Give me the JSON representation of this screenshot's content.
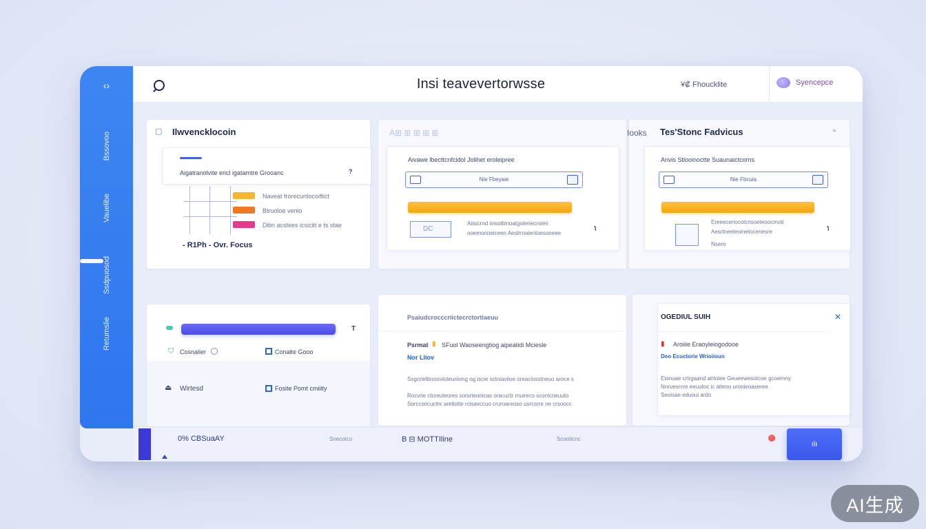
{
  "app": {
    "title": "Insi teavevertorwsse",
    "top_link": "¥₡ Fhoucklite",
    "user_label": "Syencepce"
  },
  "sidebar": {
    "items": [
      "Bssovoo",
      "Vauelibe",
      "Ssdpuosod",
      "Retumslie"
    ]
  },
  "cards": {
    "overview": {
      "title": "Ilwvencklocoin",
      "subtitle": "Aigatranolvite ericl igatamtre Grooanc",
      "subtitle_mark": "?",
      "legend": [
        {
          "label": "Naveat frorecurtiocoiftict",
          "color": "#f4b62c"
        },
        {
          "label": "Btruoloe veriio",
          "color": "#f07a23"
        },
        {
          "label": "Ditin acstees icsicitt e ts stae",
          "color": "#e03b8c"
        }
      ],
      "footer_text": "- R1Ph - Ovr.  Focus"
    },
    "middle_top": {
      "header_faint": "A⊞ ⊞ ⊞ ⊞ ⊞",
      "label": "Aivawe lbecttcnfcidol Jolihet eroleipree",
      "input_text": "Nie Fbeyaie",
      "lines": [
        "Aiisicrnd ivisotlimoatgsteriecrsteri",
        "ooemorioeiceen Aeslrroaienloesoneee"
      ],
      "box_text": "DC"
    },
    "right_top": {
      "prefix": "Iooks",
      "title": "Tes'Stonc Fadvicus",
      "label": "Anvis Stlooinoctte Suaunaictcorns",
      "input_text": "Nie Fbcuia",
      "lines": [
        "Ereeeceriocotcnsoeteoocmoti",
        "Aesrtneeteoinetocenesre",
        "Nsero"
      ]
    },
    "progress_card": {
      "mark": "T",
      "progress": 1.0,
      "opt1": "Cosnalier",
      "opt2": "Conaite Gooo",
      "opt3": "Wirtesd",
      "opt4": "Fosite Pomt cmiiity"
    },
    "mid_bottom": {
      "title": "Psaiudcrocccriictecrctortiaeuu",
      "row_label": "Psrmat",
      "row_text": "SFuol Waoseengtiog aipeatidi Mciesle",
      "tag": "Nor Lliov",
      "para": [
        "Ssgcrieltirsssvioteuriiong og iscie sctniaviioe oreaciosstneuo aroce s",
        "Rocvrie ctcreuteores sorsrteonicas oracuctr rnuirecs sconlcneuuto",
        "Sorccsricuctnr aretiotte rcisavccuo cruroareoso usrcsrre ne crsoocc"
      ]
    },
    "right_bottom": {
      "title": "OGEDIUL SUIH",
      "row_text": "Aroiiie Eraoyleiogodooe",
      "tag": "Deo Ecuctorie Wrioiioun",
      "para": [
        "Eionuae crtrgaand alrtoiee Geueewesotcoe gcoernny",
        "Nnruesrcre eeuutoc ic aiteoo urooieoaseree",
        "Seoisae eduoui ardo"
      ]
    }
  },
  "footer": {
    "item1": "0%  CBSuaAY",
    "item2": "Snecotco",
    "item3": "B  ⊟  MOTTIline",
    "item4": "Scooticnc",
    "button_label": "ılı"
  },
  "watermark": "AI生成",
  "colors": {
    "sidebar": "#3d86f2",
    "accent_blue": "#3a63e6",
    "orange": "#f5a416",
    "progress": "#4a4ee6",
    "footer_button": "#3a58ec"
  }
}
